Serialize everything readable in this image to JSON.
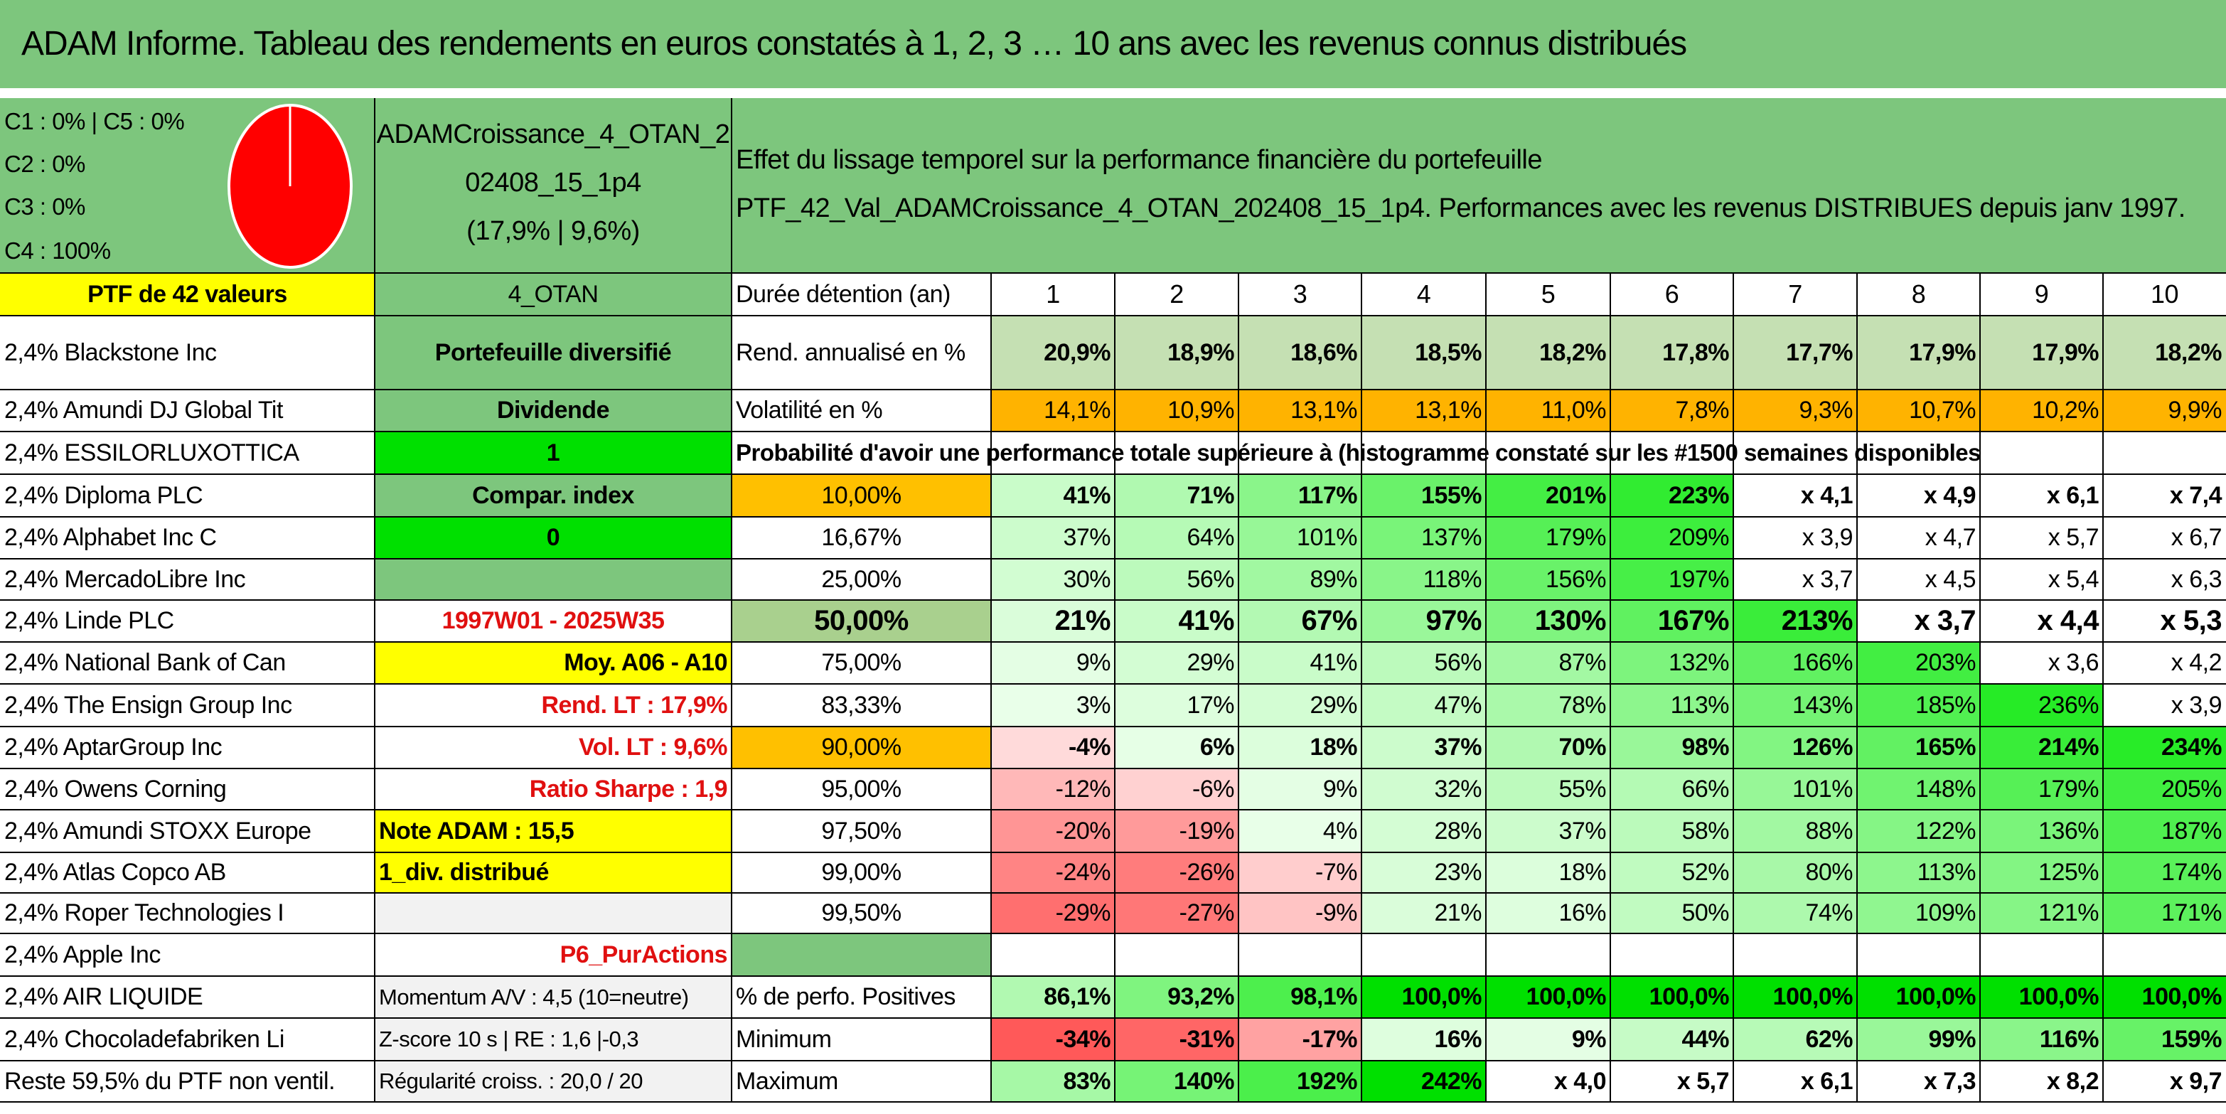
{
  "title": "ADAM Informe. Tableau des rendements en euros constatés à 1, 2, 3 … 10 ans avec les revenus connus distribués",
  "classes": [
    "C1 : 0% | C5 : 0%",
    "C2 : 0%",
    "C3 : 0%",
    "C4 : 100%"
  ],
  "pie": {
    "color": "#ff0000",
    "C4": 100
  },
  "portfolio": {
    "name_line1": "ADAMCroissance_4_OTAN_2",
    "name_line2": "02408_15_1p4",
    "perf": "(17,9% | 9,6%)"
  },
  "header_text_line1": "Effet du lissage temporel sur la performance financière du portefeuille",
  "header_text_line2": "PTF_42_Val_ADAMCroissance_4_OTAN_202408_15_1p4. Performances avec les revenus DISTRIBUES depuis janv 1997.",
  "ptf_label": "PTF de 42 valeurs",
  "holdings": [
    "2,4% Blackstone Inc",
    "2,4% Amundi DJ Global Tit",
    "2,4% ESSILORLUXOTTICA",
    "2,4% Diploma PLC",
    "2,4% Alphabet Inc C",
    "2,4% MercadoLibre Inc",
    "2,4% Linde PLC",
    "2,4% National Bank of Can",
    "2,4% The Ensign Group Inc",
    "2,4% AptarGroup Inc",
    "2,4% Owens Corning",
    "2,4% Amundi STOXX Europe",
    "2,4% Atlas Copco AB",
    "2,4% Roper Technologies I",
    "2,4% Apple Inc",
    "2,4% AIR LIQUIDE",
    "2,4% Chocoladefabriken Li",
    "Reste 59,5% du PTF non ventil."
  ],
  "info": [
    "4_OTAN",
    "Portefeuille diversifié",
    "Dividende",
    "1",
    "Compar. index",
    "0",
    "",
    "1997W01 - 2025W35",
    "Moy. A06 - A10",
    "Rend. LT : 17,9%",
    "Vol. LT : 9,6%",
    "Ratio Sharpe : 1,9",
    "Note ADAM : 15,5",
    "1_div. distribué",
    "",
    "P6_PurActions",
    "Momentum A/V : 4,5 (10=neutre)",
    "Z-score 10 s | RE : 1,6 |-0,3",
    "Régularité croiss. : 20,0 / 20"
  ],
  "table": {
    "duration_label": "Durée détention (an)",
    "years": [
      "1",
      "2",
      "3",
      "4",
      "5",
      "6",
      "7",
      "8",
      "9",
      "10"
    ],
    "rend_label": "Rend. annualisé en %",
    "rend": [
      "20,9%",
      "18,9%",
      "18,6%",
      "18,5%",
      "18,2%",
      "17,8%",
      "17,7%",
      "17,9%",
      "17,9%",
      "18,2%"
    ],
    "vol_label": "Volatilité en %",
    "vol": [
      "14,1%",
      "10,9%",
      "13,1%",
      "13,1%",
      "11,0%",
      "7,8%",
      "9,3%",
      "10,7%",
      "10,2%",
      "9,9%"
    ],
    "prob_title": "Probabilité d'avoir une performance totale supérieure à (histogramme constaté sur les #1500 semaines disponibles)",
    "prob_rows": [
      {
        "p": "10,00%",
        "v": [
          "41%",
          "71%",
          "117%",
          "155%",
          "201%",
          "223%",
          "x 4,1",
          "x 4,9",
          "x 6,1",
          "x 7,4"
        ]
      },
      {
        "p": "16,67%",
        "v": [
          "37%",
          "64%",
          "101%",
          "137%",
          "179%",
          "209%",
          "x 3,9",
          "x 4,7",
          "x 5,7",
          "x 6,7"
        ]
      },
      {
        "p": "25,00%",
        "v": [
          "30%",
          "56%",
          "89%",
          "118%",
          "156%",
          "197%",
          "x 3,7",
          "x 4,5",
          "x 5,4",
          "x 6,3"
        ]
      },
      {
        "p": "50,00%",
        "v": [
          "21%",
          "41%",
          "67%",
          "97%",
          "130%",
          "167%",
          "213%",
          "x 3,7",
          "x 4,4",
          "x 5,3"
        ]
      },
      {
        "p": "75,00%",
        "v": [
          "9%",
          "29%",
          "41%",
          "56%",
          "87%",
          "132%",
          "166%",
          "203%",
          "x 3,6",
          "x 4,2"
        ]
      },
      {
        "p": "83,33%",
        "v": [
          "3%",
          "17%",
          "29%",
          "47%",
          "78%",
          "113%",
          "143%",
          "185%",
          "236%",
          "x 3,9"
        ]
      },
      {
        "p": "90,00%",
        "v": [
          "-4%",
          "6%",
          "18%",
          "37%",
          "70%",
          "98%",
          "126%",
          "165%",
          "214%",
          "234%"
        ]
      },
      {
        "p": "95,00%",
        "v": [
          "-12%",
          "-6%",
          "9%",
          "32%",
          "55%",
          "66%",
          "101%",
          "148%",
          "179%",
          "205%"
        ]
      },
      {
        "p": "97,50%",
        "v": [
          "-20%",
          "-19%",
          "4%",
          "28%",
          "37%",
          "58%",
          "88%",
          "122%",
          "136%",
          "187%"
        ]
      },
      {
        "p": "99,00%",
        "v": [
          "-24%",
          "-26%",
          "-7%",
          "23%",
          "18%",
          "52%",
          "80%",
          "113%",
          "125%",
          "174%"
        ]
      },
      {
        "p": "99,50%",
        "v": [
          "-29%",
          "-27%",
          "-9%",
          "21%",
          "16%",
          "50%",
          "74%",
          "109%",
          "121%",
          "171%"
        ]
      }
    ],
    "pos_label": "% de perfo. Positives",
    "pos": [
      "86,1%",
      "93,2%",
      "98,1%",
      "100,0%",
      "100,0%",
      "100,0%",
      "100,0%",
      "100,0%",
      "100,0%",
      "100,0%"
    ],
    "min_label": "Minimum",
    "min": [
      "-34%",
      "-31%",
      "-17%",
      "16%",
      "9%",
      "44%",
      "62%",
      "99%",
      "116%",
      "159%"
    ],
    "max_label": "Maximum",
    "max": [
      "83%",
      "140%",
      "192%",
      "242%",
      "x 4,0",
      "x 5,7",
      "x 6,1",
      "x 7,3",
      "x 8,2",
      "x 9,7"
    ]
  }
}
